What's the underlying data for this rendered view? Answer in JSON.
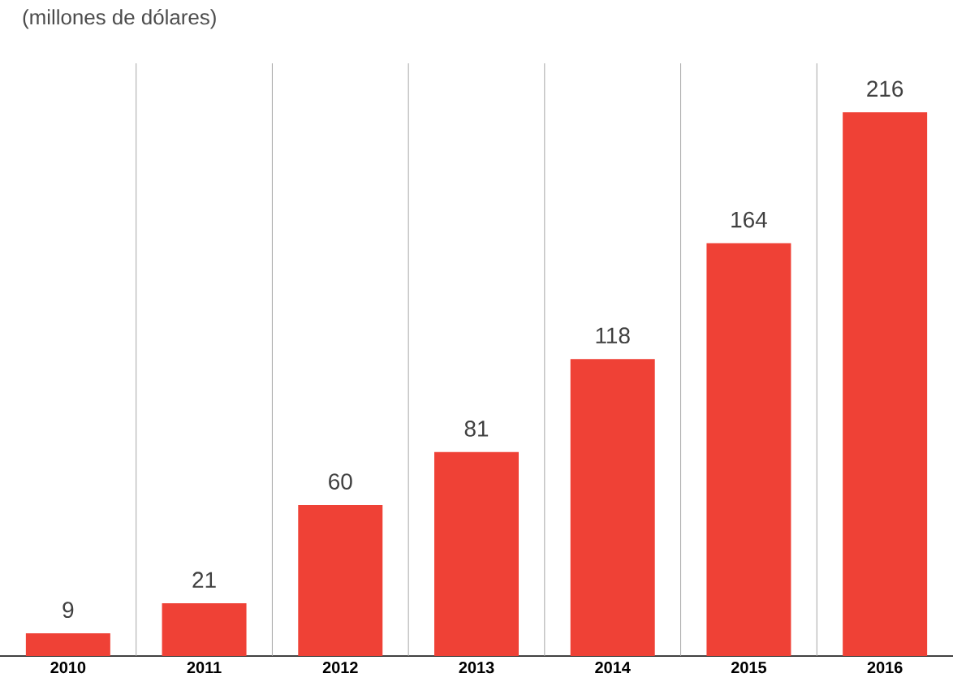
{
  "chart_data": {
    "type": "bar",
    "subtitle": "(millones de dólares)",
    "categories": [
      "2010",
      "2011",
      "2012",
      "2013",
      "2014",
      "2015",
      "2016"
    ],
    "values": [
      9,
      21,
      60,
      81,
      118,
      164,
      216
    ],
    "color": "#ef4136",
    "data_labels": true,
    "grid": "x",
    "tick_labels": "x"
  }
}
